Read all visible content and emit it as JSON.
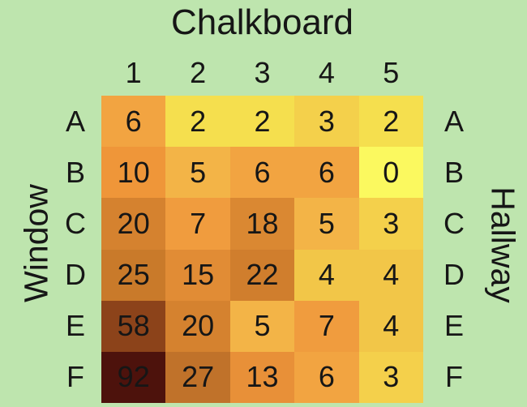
{
  "title": "Chalkboard",
  "side_labels": {
    "left": "Window",
    "right": "Hallway"
  },
  "colors": {
    "background": "#bee5ae",
    "text": "#161616"
  },
  "chart_data": {
    "type": "heatmap",
    "title": "Chalkboard",
    "left_axis_label": "Window",
    "right_axis_label": "Hallway",
    "columns": [
      "1",
      "2",
      "3",
      "4",
      "5"
    ],
    "rows": [
      "A",
      "B",
      "C",
      "D",
      "E",
      "F"
    ],
    "values": [
      [
        6,
        2,
        2,
        3,
        2
      ],
      [
        10,
        5,
        6,
        6,
        0
      ],
      [
        20,
        7,
        18,
        5,
        3
      ],
      [
        25,
        15,
        22,
        4,
        4
      ],
      [
        58,
        20,
        5,
        7,
        4
      ],
      [
        92,
        27,
        13,
        6,
        3
      ]
    ],
    "cell_colors": [
      [
        "#f2a441",
        "#f5df4e",
        "#f5df4e",
        "#f4d04b",
        "#f5df4e"
      ],
      [
        "#ef9639",
        "#f3b447",
        "#f2a441",
        "#f2a441",
        "#fbf95f"
      ],
      [
        "#d5822f",
        "#f09c3e",
        "#da8832",
        "#f3b447",
        "#f4d04b"
      ],
      [
        "#c97a2a",
        "#e18c35",
        "#d07e2d",
        "#f2c648",
        "#f2c648"
      ],
      [
        "#8c431a",
        "#d5822f",
        "#f3b447",
        "#f09c3e",
        "#f2c648"
      ],
      [
        "#4d120c",
        "#c0722a",
        "#e89038",
        "#f2a441",
        "#f4d04b"
      ]
    ],
    "legend": "none",
    "grid_lines": "off"
  }
}
